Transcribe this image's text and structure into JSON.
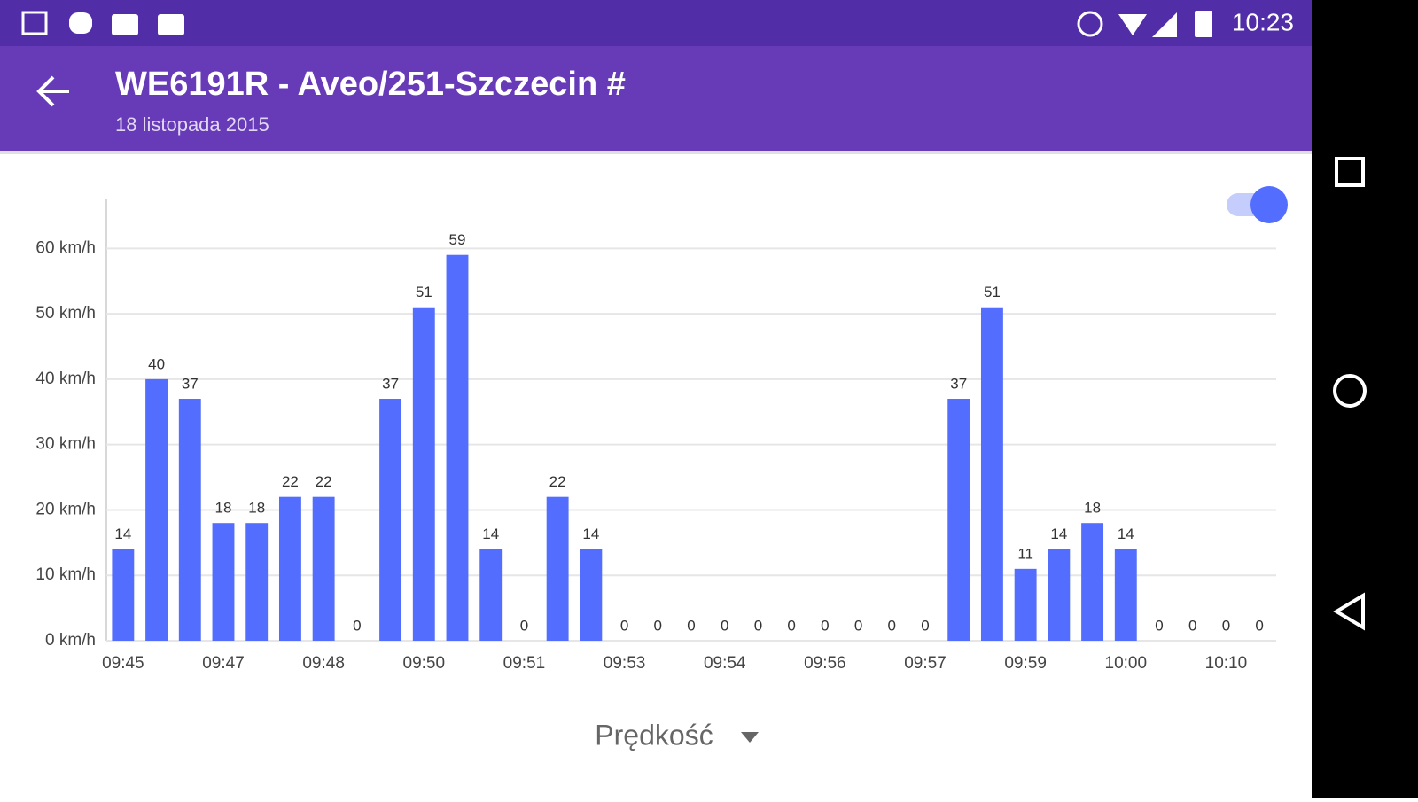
{
  "status_bar": {
    "time": "10:23"
  },
  "toolbar": {
    "title": "WE6191R - Aveo/251-Szczecin #",
    "subtitle": "18 listopada 2015"
  },
  "chart_data": {
    "type": "bar",
    "categories": [
      "09:45",
      null,
      null,
      "09:47",
      null,
      null,
      "09:48",
      null,
      null,
      "09:50",
      null,
      null,
      "09:51",
      null,
      null,
      "09:53",
      null,
      null,
      "09:54",
      null,
      null,
      "09:56",
      null,
      null,
      "09:57",
      null,
      null,
      "09:59",
      null,
      null,
      "10:00",
      null,
      null,
      "10:10",
      null
    ],
    "values": [
      14,
      40,
      37,
      18,
      18,
      22,
      22,
      0,
      37,
      51,
      59,
      14,
      0,
      22,
      14,
      0,
      0,
      0,
      0,
      0,
      0,
      0,
      0,
      0,
      0,
      37,
      51,
      11,
      14,
      18,
      14,
      0,
      0,
      0,
      0
    ],
    "color": "#536dfe",
    "ylim": [
      0,
      67.5
    ],
    "yticks": [
      {
        "value": 0,
        "label": "0 km/h"
      },
      {
        "value": 10,
        "label": "10 km/h"
      },
      {
        "value": 20,
        "label": "20 km/h"
      },
      {
        "value": 30,
        "label": "30 km/h"
      },
      {
        "value": 40,
        "label": "40 km/h"
      },
      {
        "value": 50,
        "label": "50 km/h"
      },
      {
        "value": 60,
        "label": "60 km/h"
      }
    ],
    "grid": true
  },
  "selector": {
    "label": "Prędkość"
  }
}
